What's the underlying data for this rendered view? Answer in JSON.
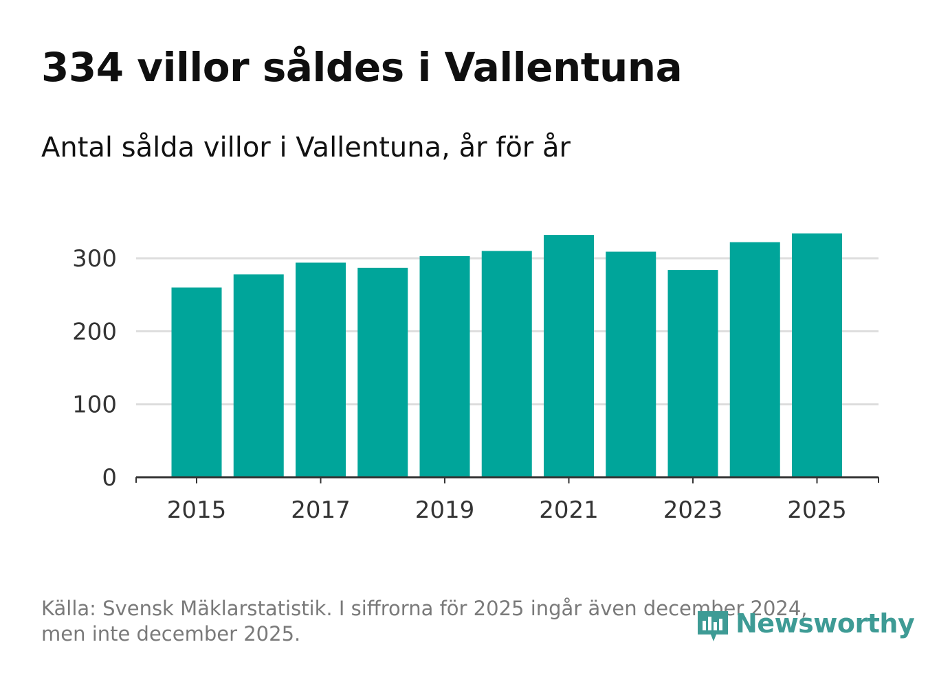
{
  "title": "334 villor såldes i Vallentuna",
  "subtitle": "Antal sålda villor i Vallentuna, år för år",
  "footer": {
    "line1": "Källa: Svensk Mäklarstatistik. I siffrorna för 2025 ingår även december 2024,",
    "line2": "men inte december 2025."
  },
  "logo": {
    "text": "Newsworthy",
    "icon": "newsworthy-logo-icon"
  },
  "colors": {
    "bar": "#00a59a",
    "grid": "#dddddd",
    "axis": "#333333",
    "tick_text": "#333333",
    "logo": "#3e9b95"
  },
  "chart_data": {
    "type": "bar",
    "title": "334 villor såldes i Vallentuna",
    "subtitle": "Antal sålda villor i Vallentuna, år för år",
    "categories": [
      "2015",
      "2016",
      "2017",
      "2018",
      "2019",
      "2020",
      "2021",
      "2022",
      "2023",
      "2024",
      "2025"
    ],
    "values": [
      260,
      278,
      294,
      287,
      303,
      310,
      332,
      309,
      284,
      322,
      334
    ],
    "x_tick_labels": [
      "2015",
      "2017",
      "2019",
      "2021",
      "2023",
      "2025"
    ],
    "y_ticks": [
      0,
      100,
      200,
      300
    ],
    "ylim": [
      0,
      340
    ],
    "xlabel": "",
    "ylabel": "",
    "grid": true,
    "legend": "none"
  }
}
